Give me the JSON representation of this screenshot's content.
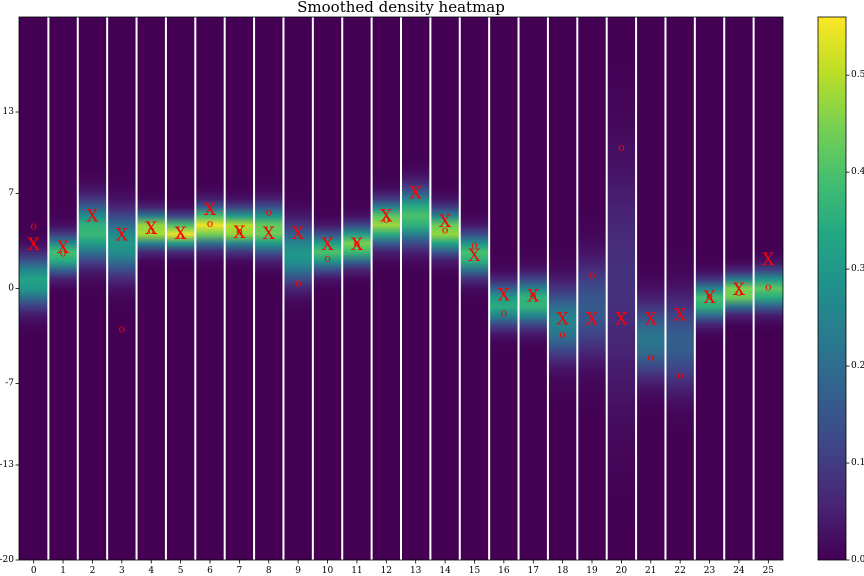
{
  "chart_data": {
    "type": "heatmap",
    "title": "Smoothed density heatmap",
    "xlabel": "",
    "ylabel": "",
    "x": [
      0,
      1,
      2,
      3,
      4,
      5,
      6,
      7,
      8,
      9,
      10,
      11,
      12,
      13,
      14,
      15,
      16,
      17,
      18,
      19,
      20,
      21,
      22,
      23,
      24,
      25
    ],
    "xlim": [
      -0.5,
      25.5
    ],
    "ylim": [
      -20,
      20
    ],
    "y_ticks": [
      -20,
      -13,
      -7,
      0,
      7,
      13
    ],
    "grid": false,
    "colormap": "viridis",
    "columns": [
      {
        "x": 0,
        "center": 0.5,
        "spread": 1.2,
        "peak": 0.33,
        "markers": [
          {
            "s": "X",
            "y": 3.2
          },
          {
            "s": "o",
            "y": 4.6
          }
        ]
      },
      {
        "x": 1,
        "center": 2.5,
        "spread": 0.9,
        "peak": 0.4,
        "markers": [
          {
            "s": "X",
            "y": 3.0
          },
          {
            "s": "o",
            "y": 2.6
          }
        ]
      },
      {
        "x": 2,
        "center": 4.2,
        "spread": 1.4,
        "peak": 0.38,
        "markers": [
          {
            "s": "X",
            "y": 5.3
          }
        ]
      },
      {
        "x": 3,
        "center": 3.3,
        "spread": 1.5,
        "peak": 0.3,
        "markers": [
          {
            "s": "X",
            "y": 3.9
          },
          {
            "s": "o",
            "y": -3.0
          }
        ]
      },
      {
        "x": 4,
        "center": 4.3,
        "spread": 0.8,
        "peak": 0.52,
        "markers": [
          {
            "s": "X",
            "y": 4.4
          },
          {
            "s": "o",
            "y": 4.3
          }
        ]
      },
      {
        "x": 5,
        "center": 4.1,
        "spread": 0.7,
        "peak": 0.55,
        "markers": [
          {
            "s": "X",
            "y": 4.0
          },
          {
            "s": "o",
            "y": 3.9
          }
        ]
      },
      {
        "x": 6,
        "center": 4.6,
        "spread": 0.9,
        "peak": 0.55,
        "markers": [
          {
            "s": "X",
            "y": 5.8
          },
          {
            "s": "o",
            "y": 4.8
          }
        ]
      },
      {
        "x": 7,
        "center": 4.4,
        "spread": 0.9,
        "peak": 0.52,
        "markers": [
          {
            "s": "X",
            "y": 4.1
          },
          {
            "s": "o",
            "y": 4.2
          }
        ]
      },
      {
        "x": 8,
        "center": 4.3,
        "spread": 1.1,
        "peak": 0.45,
        "markers": [
          {
            "s": "X",
            "y": 4.0
          },
          {
            "s": "o",
            "y": 5.6
          }
        ]
      },
      {
        "x": 9,
        "center": 2.5,
        "spread": 1.4,
        "peak": 0.3,
        "markers": [
          {
            "s": "X",
            "y": 4.0
          },
          {
            "s": "o",
            "y": 0.4
          }
        ]
      },
      {
        "x": 10,
        "center": 2.7,
        "spread": 0.9,
        "peak": 0.4,
        "markers": [
          {
            "s": "X",
            "y": 3.2
          },
          {
            "s": "o",
            "y": 2.2
          }
        ]
      },
      {
        "x": 11,
        "center": 3.2,
        "spread": 0.9,
        "peak": 0.45,
        "markers": [
          {
            "s": "X",
            "y": 3.2
          },
          {
            "s": "o",
            "y": 3.3
          }
        ]
      },
      {
        "x": 12,
        "center": 4.8,
        "spread": 1.0,
        "peak": 0.48,
        "markers": [
          {
            "s": "X",
            "y": 5.3
          },
          {
            "s": "o",
            "y": 5.1
          }
        ]
      },
      {
        "x": 13,
        "center": 5.3,
        "spread": 1.3,
        "peak": 0.4,
        "markers": [
          {
            "s": "X",
            "y": 7.0
          }
        ]
      },
      {
        "x": 14,
        "center": 4.2,
        "spread": 1.0,
        "peak": 0.48,
        "markers": [
          {
            "s": "X",
            "y": 4.9
          },
          {
            "s": "o",
            "y": 4.3
          }
        ]
      },
      {
        "x": 15,
        "center": 2.5,
        "spread": 1.0,
        "peak": 0.4,
        "markers": [
          {
            "s": "X",
            "y": 2.4
          },
          {
            "s": "o",
            "y": 3.2
          }
        ]
      },
      {
        "x": 16,
        "center": -1.2,
        "spread": 1.0,
        "peak": 0.35,
        "markers": [
          {
            "s": "X",
            "y": -0.5
          },
          {
            "s": "o",
            "y": -1.8
          }
        ]
      },
      {
        "x": 17,
        "center": -1.0,
        "spread": 1.1,
        "peak": 0.38,
        "markers": [
          {
            "s": "X",
            "y": -0.6
          },
          {
            "s": "o",
            "y": -0.5
          }
        ]
      },
      {
        "x": 18,
        "center": -2.5,
        "spread": 1.7,
        "peak": 0.25,
        "markers": [
          {
            "s": "X",
            "y": -2.3
          },
          {
            "s": "o",
            "y": -3.4
          }
        ]
      },
      {
        "x": 19,
        "center": -1.5,
        "spread": 2.3,
        "peak": 0.16,
        "markers": [
          {
            "s": "X",
            "y": -2.3
          },
          {
            "s": "o",
            "y": 1.0
          }
        ]
      },
      {
        "x": 20,
        "center": 0.5,
        "spread": 6.0,
        "peak": 0.08,
        "markers": [
          {
            "s": "X",
            "y": -2.3
          },
          {
            "s": "o",
            "y": 10.4
          }
        ]
      },
      {
        "x": 21,
        "center": -3.8,
        "spread": 1.8,
        "peak": 0.22,
        "markers": [
          {
            "s": "X",
            "y": -2.3
          },
          {
            "s": "o",
            "y": -5.1
          }
        ]
      },
      {
        "x": 22,
        "center": -4.0,
        "spread": 2.2,
        "peak": 0.17,
        "markers": [
          {
            "s": "X",
            "y": -2.0
          },
          {
            "s": "o",
            "y": -6.4
          }
        ]
      },
      {
        "x": 23,
        "center": -0.9,
        "spread": 0.9,
        "peak": 0.4,
        "markers": [
          {
            "s": "X",
            "y": -0.7
          },
          {
            "s": "o",
            "y": -0.6
          }
        ]
      },
      {
        "x": 24,
        "center": -0.3,
        "spread": 0.8,
        "peak": 0.48,
        "markers": [
          {
            "s": "X",
            "y": -0.1
          },
          {
            "s": "o",
            "y": -0.3
          }
        ]
      },
      {
        "x": 25,
        "center": -0.1,
        "spread": 0.9,
        "peak": 0.42,
        "markers": [
          {
            "s": "X",
            "y": 2.1
          },
          {
            "s": "o",
            "y": 0.1
          }
        ]
      }
    ],
    "colorbar": {
      "min": 0.0,
      "max": 0.56,
      "ticks": [
        {
          "value": 0.0,
          "label": "0.0"
        },
        {
          "value": 0.1,
          "label": "0.1"
        },
        {
          "value": 0.2,
          "label": "0.2"
        },
        {
          "value": 0.3,
          "label": "0.3"
        },
        {
          "value": 0.4,
          "label": "0.4"
        },
        {
          "value": 0.5,
          "label": "0.5"
        }
      ]
    }
  }
}
